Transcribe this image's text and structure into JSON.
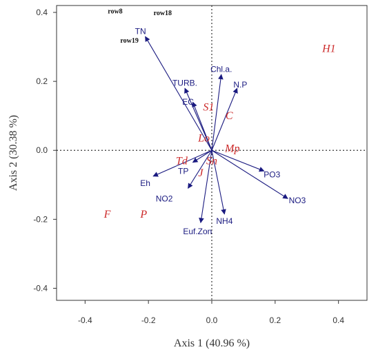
{
  "chart_data": {
    "type": "scatter",
    "subtype": "biplot",
    "xlabel": "Axis  1 (40.96 %)",
    "ylabel": "Axis  2 (30.38 %)",
    "xlim": [
      -0.49,
      0.49
    ],
    "ylim": [
      -0.435,
      0.42
    ],
    "x_ticks": [
      -0.4,
      -0.2,
      0.0,
      0.2,
      0.4
    ],
    "x_tick_labels": [
      "-0.4",
      "-0.2",
      "0.0",
      "0.2",
      "0.4"
    ],
    "y_ticks": [
      -0.4,
      -0.2,
      0.0,
      0.2,
      0.4
    ],
    "y_tick_labels": [
      "-0.4",
      "-0.2",
      "0.0",
      "0.2",
      "0.4"
    ],
    "zero_lines": true,
    "colors": {
      "vectors": "#1a1a80",
      "sites": "#cc2a2a",
      "rows": "#111111",
      "axis": "#333333"
    },
    "vectors": [
      {
        "label": "TN",
        "x": -0.21,
        "y": 0.33,
        "lx": -0.225,
        "ly": 0.345
      },
      {
        "label": "Chl.a.",
        "x": 0.03,
        "y": 0.22,
        "lx": 0.03,
        "ly": 0.235
      },
      {
        "label": "N.P",
        "x": 0.08,
        "y": 0.18,
        "lx": 0.09,
        "ly": 0.19
      },
      {
        "label": "TURB.",
        "x": -0.085,
        "y": 0.18,
        "lx": -0.085,
        "ly": 0.195
      },
      {
        "label": "EC",
        "x": -0.06,
        "y": 0.14,
        "lx": -0.075,
        "ly": 0.14
      },
      {
        "label": "PO3",
        "x": 0.165,
        "y": -0.06,
        "lx": 0.19,
        "ly": -0.07
      },
      {
        "label": "NO3",
        "x": 0.24,
        "y": -0.14,
        "lx": 0.27,
        "ly": -0.145
      },
      {
        "label": "NH4",
        "x": 0.04,
        "y": -0.185,
        "lx": 0.04,
        "ly": -0.205
      },
      {
        "label": "Euf.Zon",
        "x": -0.035,
        "y": -0.21,
        "lx": -0.045,
        "ly": -0.235
      },
      {
        "label": "NO2",
        "x": -0.075,
        "y": -0.11,
        "lx": -0.15,
        "ly": -0.14
      },
      {
        "label": "Eh",
        "x": -0.185,
        "y": -0.075,
        "lx": -0.21,
        "ly": -0.095
      },
      {
        "label": "TP",
        "x": -0.06,
        "y": -0.035,
        "lx": -0.09,
        "ly": -0.06
      }
    ],
    "sites": [
      {
        "label": "H1",
        "x": 0.37,
        "y": 0.295
      },
      {
        "label": "S1",
        "x": -0.01,
        "y": 0.125
      },
      {
        "label": "C",
        "x": 0.055,
        "y": 0.1
      },
      {
        "label": "Lo",
        "x": -0.025,
        "y": 0.035
      },
      {
        "label": "Mp",
        "x": 0.065,
        "y": 0.005
      },
      {
        "label": "Td",
        "x": -0.095,
        "y": -0.03
      },
      {
        "label": "Sn",
        "x": 0.0,
        "y": -0.03
      },
      {
        "label": "J",
        "x": -0.035,
        "y": -0.065
      },
      {
        "label": "F",
        "x": -0.33,
        "y": -0.185
      },
      {
        "label": "P",
        "x": -0.215,
        "y": -0.185
      }
    ],
    "rows": [
      {
        "label": "row8",
        "x": -0.305,
        "y": 0.405
      },
      {
        "label": "row18",
        "x": -0.155,
        "y": 0.4
      },
      {
        "label": "row19",
        "x": -0.26,
        "y": 0.32
      }
    ]
  }
}
